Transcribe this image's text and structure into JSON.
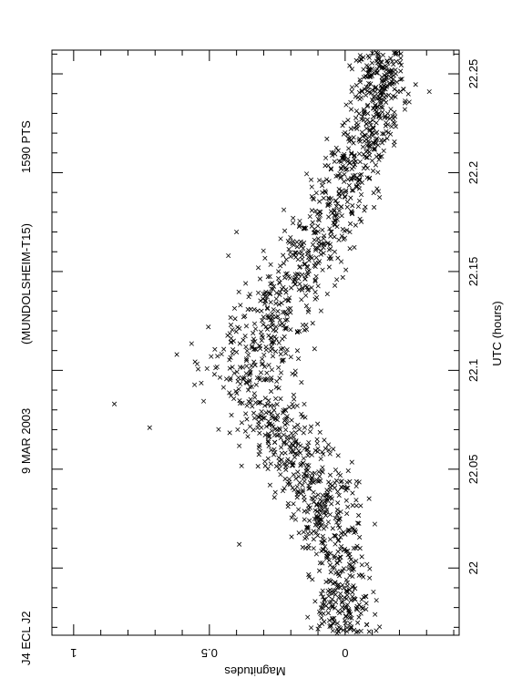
{
  "chart_data": {
    "type": "scatter",
    "header": {
      "object": "J4 ECL J2",
      "date": "9 MAR 2003",
      "site": "(MUNDOLSHEIM-T15)",
      "points": "1590 PTS"
    },
    "xlabel": "UTC (hours)",
    "ylabel": "Magnitudes",
    "xlim": [
      21.966,
      22.262
    ],
    "ylim": [
      1.08,
      -0.42
    ],
    "x_ticks": [
      22.0,
      22.05,
      22.1,
      22.15,
      22.2,
      22.25
    ],
    "x_tick_labels": [
      "22",
      "22.05",
      "22.1",
      "22.15",
      "22.2",
      "22.25"
    ],
    "y_ticks": [
      0,
      0.5,
      1
    ],
    "y_tick_labels": [
      "0",
      "0.5",
      "1"
    ],
    "marker": "x",
    "grid": false,
    "trend": {
      "x": [
        21.966,
        21.99,
        22.01,
        22.03,
        22.05,
        22.07,
        22.09,
        22.1,
        22.12,
        22.14,
        22.16,
        22.18,
        22.2,
        22.22,
        22.24,
        22.262
      ],
      "mean": [
        0.0,
        0.01,
        0.03,
        0.07,
        0.15,
        0.25,
        0.33,
        0.35,
        0.3,
        0.22,
        0.12,
        0.05,
        0.0,
        -0.08,
        -0.12,
        -0.14
      ],
      "spread": [
        0.1,
        0.1,
        0.11,
        0.12,
        0.14,
        0.15,
        0.16,
        0.17,
        0.16,
        0.15,
        0.14,
        0.12,
        0.11,
        0.1,
        0.1,
        0.09
      ]
    },
    "n_points": 1590,
    "outliers": [
      {
        "x": 22.083,
        "y": 0.85
      },
      {
        "x": 22.071,
        "y": 0.72
      },
      {
        "x": 22.012,
        "y": 0.39
      },
      {
        "x": 22.17,
        "y": 0.4
      },
      {
        "x": 22.158,
        "y": 0.43
      },
      {
        "x": 22.108,
        "y": 0.62
      },
      {
        "x": 22.232,
        "y": -0.22
      },
      {
        "x": 22.241,
        "y": -0.31
      }
    ]
  }
}
